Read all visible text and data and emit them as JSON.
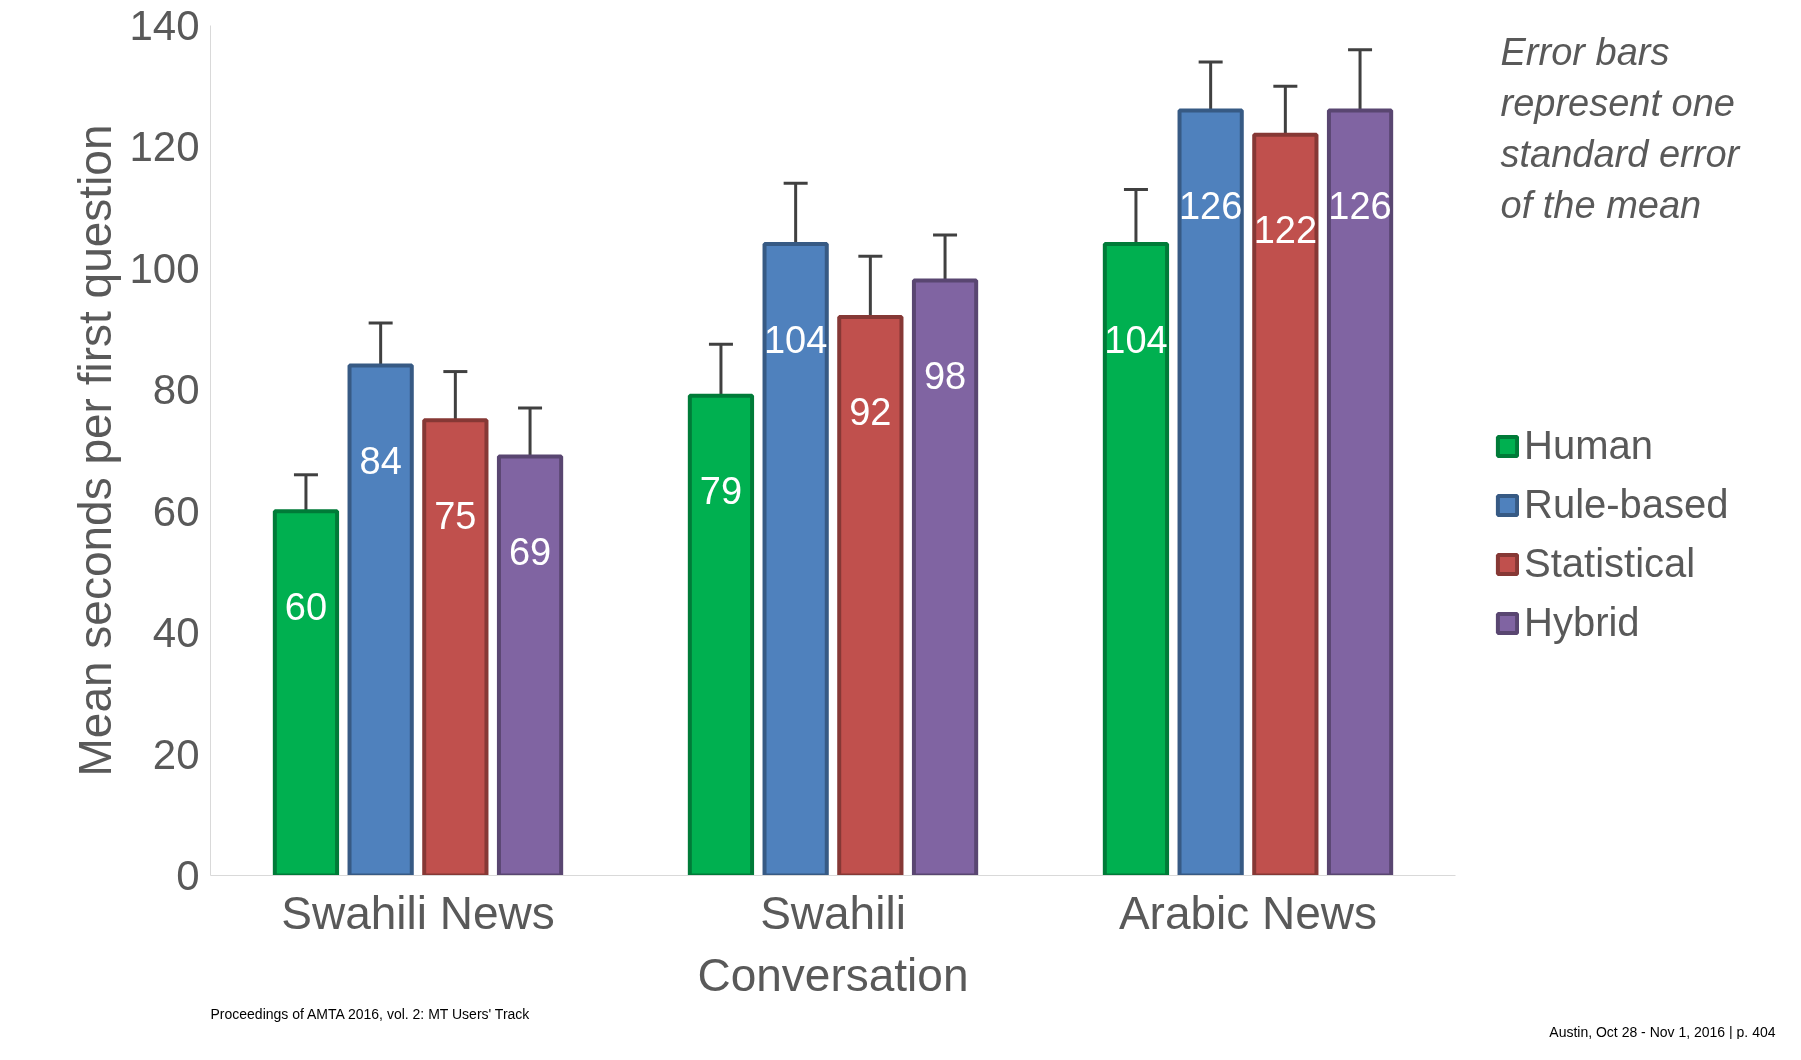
{
  "chart_data": {
    "type": "bar",
    "ylabel": "Mean seconds per first question",
    "categories": [
      "Swahili News",
      "Swahili Conversation",
      "Arabic News"
    ],
    "series": [
      {
        "name": "Human",
        "color": "#00b050",
        "values": [
          60,
          79,
          104
        ],
        "errors": [
          6,
          8.5,
          9
        ]
      },
      {
        "name": "Rule-based",
        "color": "#4f81bd",
        "values": [
          84,
          104,
          126
        ],
        "errors": [
          7,
          10,
          8
        ]
      },
      {
        "name": "Statistical",
        "color": "#c0504d",
        "values": [
          75,
          92,
          122
        ],
        "errors": [
          8,
          10,
          8
        ]
      },
      {
        "name": "Hybrid",
        "color": "#8064a2",
        "values": [
          69,
          98,
          126
        ],
        "errors": [
          8,
          7.5,
          10
        ]
      }
    ],
    "ylim": [
      0,
      140
    ],
    "yticks": [
      0,
      20,
      40,
      60,
      80,
      100,
      120,
      140
    ],
    "data_labels": true,
    "grid": false,
    "legend": "right",
    "annotations": [
      "Error bars represent one standard error of the mean",
      "Proceedings of AMTA 2016, vol. 2: MT Users' Track",
      "Austin, Oct 28 - Nov 1, 2016 | p. 404"
    ]
  }
}
